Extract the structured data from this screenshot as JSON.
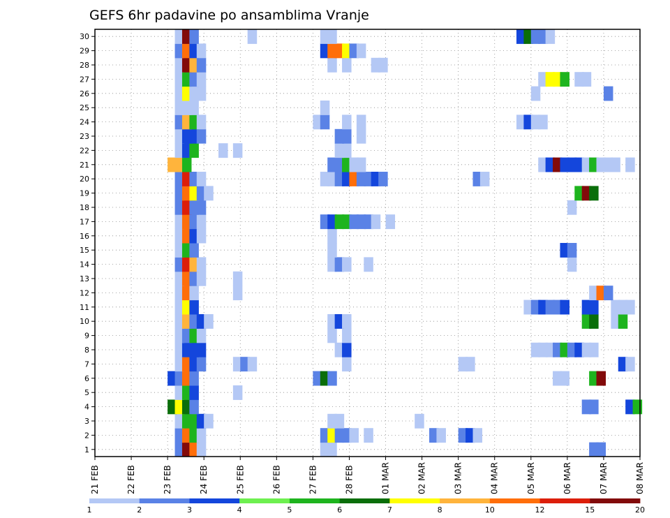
{
  "chart_data": {
    "type": "heatmap",
    "title": "GEFS 6hr padavine po ansamblima Vranje",
    "xlabel": "",
    "ylabel": "",
    "x_tick_labels": [
      "21 FEB",
      "22 FEB",
      "23 FEB",
      "24 FEB",
      "25 FEB",
      "26 FEB",
      "27 FEB",
      "28 FEB",
      "01 MAR",
      "02 MAR",
      "03 MAR",
      "04 MAR",
      "05 MAR",
      "06 MAR",
      "07 MAR",
      "08 MAR"
    ],
    "x_range_days": [
      0,
      15
    ],
    "x_step_hours": 6,
    "members": 30,
    "y_ticks": [
      1,
      2,
      3,
      4,
      5,
      6,
      7,
      8,
      9,
      10,
      11,
      12,
      13,
      14,
      15,
      16,
      17,
      18,
      19,
      20,
      21,
      22,
      23,
      24,
      25,
      26,
      27,
      28,
      29,
      30
    ],
    "grid": true,
    "legend": "bottom",
    "colorbar_labels": [
      "1",
      "2",
      "3",
      "4",
      "5",
      "6",
      "7",
      "8",
      "10",
      "12",
      "15",
      "20"
    ],
    "colorbar_colors": [
      "#b4c8f5",
      "#5a82e6",
      "#1446dc",
      "#6ef050",
      "#1eb41e",
      "#0a6e0a",
      "#ffff00",
      "#ffb43c",
      "#ff6e0a",
      "#dc1e0a",
      "#820a0a"
    ],
    "cells": [
      [
        1,
        2.2,
        2
      ],
      [
        1,
        2.4,
        20
      ],
      [
        1,
        2.6,
        10
      ],
      [
        1,
        2.8,
        1
      ],
      [
        1,
        6.2,
        1
      ],
      [
        1,
        6.4,
        1
      ],
      [
        1,
        13.6,
        2
      ],
      [
        1,
        13.8,
        2
      ],
      [
        2,
        2.2,
        2
      ],
      [
        2,
        2.4,
        10
      ],
      [
        2,
        2.6,
        5
      ],
      [
        2,
        2.8,
        1
      ],
      [
        2,
        6.2,
        2
      ],
      [
        2,
        6.4,
        7
      ],
      [
        2,
        6.6,
        2
      ],
      [
        2,
        6.8,
        2
      ],
      [
        2,
        7.0,
        1
      ],
      [
        2,
        7.4,
        1
      ],
      [
        2,
        9.2,
        2
      ],
      [
        2,
        9.4,
        1
      ],
      [
        2,
        10.0,
        2
      ],
      [
        2,
        10.2,
        3
      ],
      [
        2,
        10.4,
        1
      ],
      [
        3,
        2.2,
        1
      ],
      [
        3,
        2.4,
        5
      ],
      [
        3,
        2.6,
        5
      ],
      [
        3,
        2.8,
        3
      ],
      [
        3,
        3.0,
        1
      ],
      [
        3,
        6.4,
        1
      ],
      [
        3,
        6.6,
        1
      ],
      [
        3,
        8.8,
        1
      ],
      [
        4,
        2.0,
        6
      ],
      [
        4,
        2.2,
        7
      ],
      [
        4,
        2.4,
        6
      ],
      [
        4,
        2.6,
        2
      ],
      [
        4,
        13.4,
        2
      ],
      [
        4,
        13.6,
        2
      ],
      [
        4,
        14.6,
        3
      ],
      [
        4,
        14.8,
        5
      ],
      [
        5,
        2.2,
        1
      ],
      [
        5,
        2.4,
        5
      ],
      [
        5,
        2.6,
        3
      ],
      [
        5,
        3.8,
        1
      ],
      [
        6,
        2.0,
        3
      ],
      [
        6,
        2.2,
        2
      ],
      [
        6,
        2.4,
        10
      ],
      [
        6,
        2.6,
        2
      ],
      [
        6,
        6.0,
        2
      ],
      [
        6,
        6.2,
        6
      ],
      [
        6,
        6.4,
        2
      ],
      [
        6,
        12.6,
        1
      ],
      [
        6,
        12.8,
        1
      ],
      [
        6,
        13.6,
        5
      ],
      [
        6,
        13.8,
        15
      ],
      [
        7,
        2.2,
        1
      ],
      [
        7,
        2.4,
        10
      ],
      [
        7,
        2.6,
        3
      ],
      [
        7,
        2.8,
        2
      ],
      [
        7,
        3.8,
        1
      ],
      [
        7,
        4.0,
        2
      ],
      [
        7,
        4.2,
        1
      ],
      [
        7,
        6.8,
        1
      ],
      [
        7,
        10.0,
        1
      ],
      [
        7,
        10.2,
        1
      ],
      [
        7,
        14.4,
        3
      ],
      [
        7,
        14.6,
        1
      ],
      [
        8,
        2.2,
        1
      ],
      [
        8,
        2.4,
        3
      ],
      [
        8,
        2.6,
        3
      ],
      [
        8,
        2.8,
        3
      ],
      [
        8,
        6.6,
        1
      ],
      [
        8,
        6.8,
        3
      ],
      [
        8,
        12.0,
        1
      ],
      [
        8,
        12.2,
        1
      ],
      [
        8,
        12.4,
        1
      ],
      [
        8,
        12.6,
        2
      ],
      [
        8,
        12.8,
        5
      ],
      [
        8,
        13.0,
        2
      ],
      [
        8,
        13.2,
        3
      ],
      [
        8,
        13.4,
        1
      ],
      [
        8,
        13.6,
        1
      ],
      [
        9,
        2.2,
        1
      ],
      [
        9,
        2.4,
        2
      ],
      [
        9,
        2.6,
        5
      ],
      [
        9,
        2.8,
        1
      ],
      [
        9,
        6.4,
        1
      ],
      [
        9,
        6.8,
        1
      ],
      [
        10,
        2.2,
        1
      ],
      [
        10,
        2.4,
        8
      ],
      [
        10,
        2.6,
        2
      ],
      [
        10,
        2.8,
        3
      ],
      [
        10,
        3.0,
        1
      ],
      [
        10,
        6.4,
        1
      ],
      [
        10,
        6.6,
        3
      ],
      [
        10,
        6.8,
        1
      ],
      [
        10,
        13.4,
        5
      ],
      [
        10,
        13.6,
        6
      ],
      [
        10,
        14.2,
        1
      ],
      [
        10,
        14.4,
        5
      ],
      [
        11,
        2.2,
        1
      ],
      [
        11,
        2.4,
        7
      ],
      [
        11,
        2.6,
        3
      ],
      [
        11,
        11.8,
        1
      ],
      [
        11,
        12.0,
        2
      ],
      [
        11,
        12.2,
        3
      ],
      [
        11,
        12.4,
        2
      ],
      [
        11,
        12.6,
        2
      ],
      [
        11,
        12.8,
        3
      ],
      [
        11,
        13.4,
        3
      ],
      [
        11,
        13.6,
        3
      ],
      [
        11,
        14.2,
        1
      ],
      [
        11,
        14.4,
        1
      ],
      [
        11,
        14.6,
        1
      ],
      [
        12,
        2.2,
        1
      ],
      [
        12,
        2.4,
        10
      ],
      [
        12,
        2.6,
        1
      ],
      [
        12,
        3.8,
        1
      ],
      [
        12,
        13.6,
        1
      ],
      [
        12,
        13.8,
        10
      ],
      [
        12,
        14.0,
        2
      ],
      [
        13,
        2.2,
        1
      ],
      [
        13,
        2.4,
        10
      ],
      [
        13,
        2.6,
        2
      ],
      [
        13,
        2.8,
        1
      ],
      [
        13,
        3.8,
        1
      ],
      [
        14,
        2.2,
        2
      ],
      [
        14,
        2.4,
        12
      ],
      [
        14,
        2.6,
        8
      ],
      [
        14,
        2.8,
        1
      ],
      [
        14,
        6.4,
        1
      ],
      [
        14,
        6.6,
        2
      ],
      [
        14,
        6.8,
        1
      ],
      [
        14,
        7.4,
        1
      ],
      [
        14,
        13.0,
        1
      ],
      [
        15,
        2.2,
        1
      ],
      [
        15,
        2.4,
        5
      ],
      [
        15,
        2.6,
        2
      ],
      [
        15,
        6.4,
        1
      ],
      [
        15,
        12.8,
        3
      ],
      [
        15,
        13.0,
        2
      ],
      [
        16,
        2.2,
        1
      ],
      [
        16,
        2.4,
        10
      ],
      [
        16,
        2.6,
        3
      ],
      [
        16,
        2.8,
        1
      ],
      [
        16,
        6.4,
        1
      ],
      [
        17,
        2.2,
        1
      ],
      [
        17,
        2.4,
        10
      ],
      [
        17,
        2.6,
        2
      ],
      [
        17,
        2.8,
        1
      ],
      [
        17,
        6.2,
        2
      ],
      [
        17,
        6.4,
        3
      ],
      [
        17,
        6.6,
        5
      ],
      [
        17,
        6.8,
        5
      ],
      [
        17,
        7.0,
        2
      ],
      [
        17,
        7.2,
        2
      ],
      [
        17,
        7.4,
        2
      ],
      [
        17,
        7.6,
        1
      ],
      [
        17,
        8.0,
        1
      ],
      [
        18,
        2.2,
        2
      ],
      [
        18,
        2.4,
        12
      ],
      [
        18,
        2.6,
        2
      ],
      [
        18,
        2.8,
        2
      ],
      [
        18,
        13.0,
        1
      ],
      [
        19,
        2.2,
        2
      ],
      [
        19,
        2.4,
        10
      ],
      [
        19,
        2.6,
        7
      ],
      [
        19,
        2.8,
        2
      ],
      [
        19,
        3.0,
        1
      ],
      [
        19,
        13.2,
        5
      ],
      [
        19,
        13.4,
        20
      ],
      [
        19,
        13.6,
        6
      ],
      [
        20,
        2.2,
        2
      ],
      [
        20,
        2.4,
        12
      ],
      [
        20,
        2.6,
        2
      ],
      [
        20,
        2.8,
        1
      ],
      [
        20,
        6.2,
        1
      ],
      [
        20,
        6.4,
        1
      ],
      [
        20,
        6.6,
        2
      ],
      [
        20,
        6.8,
        3
      ],
      [
        20,
        7.0,
        10
      ],
      [
        20,
        7.2,
        2
      ],
      [
        20,
        7.4,
        2
      ],
      [
        20,
        7.6,
        3
      ],
      [
        20,
        7.8,
        2
      ],
      [
        20,
        10.4,
        2
      ],
      [
        20,
        10.6,
        1
      ],
      [
        21,
        2.0,
        8
      ],
      [
        21,
        2.2,
        8
      ],
      [
        21,
        2.4,
        5
      ],
      [
        21,
        6.4,
        2
      ],
      [
        21,
        6.6,
        2
      ],
      [
        21,
        6.8,
        5
      ],
      [
        21,
        7.0,
        1
      ],
      [
        21,
        7.2,
        1
      ],
      [
        21,
        12.2,
        1
      ],
      [
        21,
        12.4,
        3
      ],
      [
        21,
        12.6,
        15
      ],
      [
        21,
        12.8,
        3
      ],
      [
        21,
        13.0,
        3
      ],
      [
        21,
        13.2,
        3
      ],
      [
        21,
        13.4,
        1
      ],
      [
        21,
        13.6,
        5
      ],
      [
        21,
        13.8,
        1
      ],
      [
        21,
        14.0,
        1
      ],
      [
        21,
        14.2,
        1
      ],
      [
        21,
        14.6,
        1
      ],
      [
        22,
        2.2,
        1
      ],
      [
        22,
        2.4,
        3
      ],
      [
        22,
        2.6,
        5
      ],
      [
        22,
        3.4,
        1
      ],
      [
        22,
        3.8,
        1
      ],
      [
        22,
        6.6,
        1
      ],
      [
        22,
        6.8,
        1
      ],
      [
        23,
        2.2,
        1
      ],
      [
        23,
        2.4,
        3
      ],
      [
        23,
        2.6,
        3
      ],
      [
        23,
        2.8,
        2
      ],
      [
        23,
        6.6,
        2
      ],
      [
        23,
        6.8,
        2
      ],
      [
        23,
        7.2,
        1
      ],
      [
        24,
        2.2,
        2
      ],
      [
        24,
        2.4,
        8
      ],
      [
        24,
        2.6,
        5
      ],
      [
        24,
        2.8,
        1
      ],
      [
        24,
        6.0,
        1
      ],
      [
        24,
        6.2,
        2
      ],
      [
        24,
        6.8,
        1
      ],
      [
        24,
        7.2,
        1
      ],
      [
        24,
        11.6,
        1
      ],
      [
        24,
        11.8,
        3
      ],
      [
        24,
        12.0,
        1
      ],
      [
        24,
        12.2,
        1
      ],
      [
        25,
        2.2,
        1
      ],
      [
        25,
        2.4,
        1
      ],
      [
        25,
        2.6,
        1
      ],
      [
        25,
        6.2,
        1
      ],
      [
        26,
        2.2,
        1
      ],
      [
        26,
        2.4,
        7
      ],
      [
        26,
        2.6,
        1
      ],
      [
        26,
        2.8,
        1
      ],
      [
        26,
        12.0,
        1
      ],
      [
        26,
        14.0,
        2
      ],
      [
        27,
        2.2,
        1
      ],
      [
        27,
        2.4,
        5
      ],
      [
        27,
        2.6,
        2
      ],
      [
        27,
        2.8,
        1
      ],
      [
        27,
        12.2,
        1
      ],
      [
        27,
        12.4,
        7
      ],
      [
        27,
        12.6,
        7
      ],
      [
        27,
        12.8,
        5
      ],
      [
        27,
        13.2,
        1
      ],
      [
        27,
        13.4,
        1
      ],
      [
        28,
        2.2,
        1
      ],
      [
        28,
        2.4,
        15
      ],
      [
        28,
        2.6,
        8
      ],
      [
        28,
        2.8,
        2
      ],
      [
        28,
        6.4,
        1
      ],
      [
        28,
        6.8,
        1
      ],
      [
        28,
        7.6,
        1
      ],
      [
        28,
        7.8,
        1
      ],
      [
        29,
        2.2,
        2
      ],
      [
        29,
        2.4,
        10
      ],
      [
        29,
        2.6,
        3
      ],
      [
        29,
        2.8,
        1
      ],
      [
        29,
        6.2,
        3
      ],
      [
        29,
        6.4,
        10
      ],
      [
        29,
        6.6,
        10
      ],
      [
        29,
        6.8,
        7
      ],
      [
        29,
        7.0,
        2
      ],
      [
        29,
        7.2,
        1
      ],
      [
        30,
        2.2,
        1
      ],
      [
        30,
        2.4,
        15
      ],
      [
        30,
        2.6,
        2
      ],
      [
        30,
        4.2,
        1
      ],
      [
        30,
        6.2,
        1
      ],
      [
        30,
        6.4,
        1
      ],
      [
        30,
        11.6,
        3
      ],
      [
        30,
        11.8,
        6
      ],
      [
        30,
        12.0,
        2
      ],
      [
        30,
        12.2,
        2
      ],
      [
        30,
        12.4,
        1
      ]
    ]
  }
}
